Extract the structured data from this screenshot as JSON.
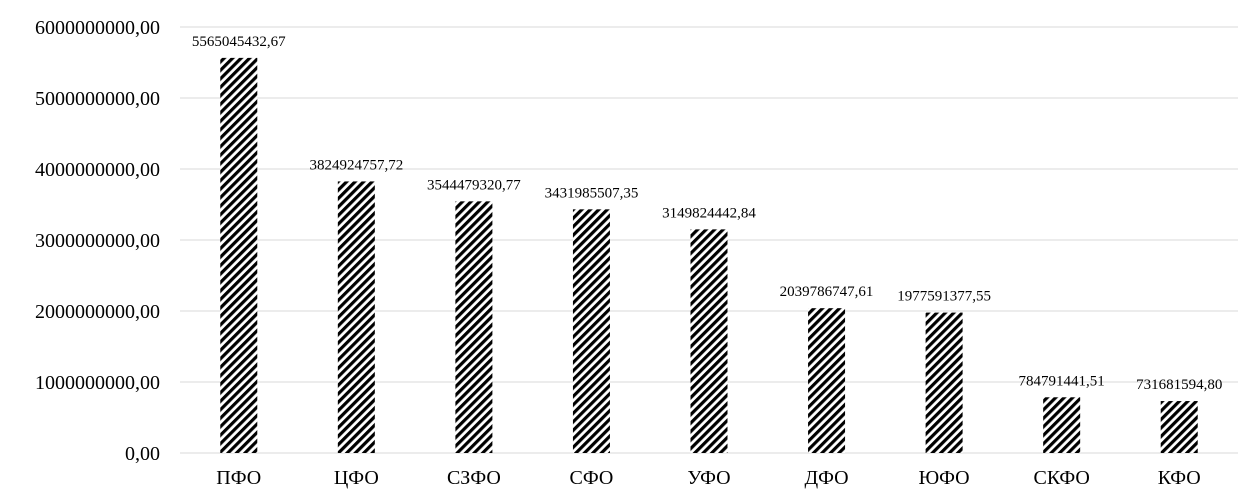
{
  "chart_data": {
    "type": "bar",
    "title": "",
    "xlabel": "",
    "ylabel": "",
    "categories": [
      "ПФО",
      "ЦФО",
      "СЗФО",
      "СФО",
      "УФО",
      "ДФО",
      "ЮФО",
      "СКФО",
      "КФО"
    ],
    "values": [
      5565045432.67,
      3824924757.72,
      3544479320.77,
      3431985507.35,
      3149824442.84,
      2039786747.61,
      1977591377.55,
      784791441.51,
      731681594.8
    ],
    "data_labels": [
      "5565045432,67",
      "3824924757,72",
      "3544479320,77",
      "3431985507,35",
      "3149824442,84",
      "2039786747,61",
      "1977591377,55",
      "784791441,51",
      "731681594,80"
    ],
    "ylim": [
      0,
      6000000000
    ],
    "yticks": [
      0,
      1000000000,
      2000000000,
      3000000000,
      4000000000,
      5000000000,
      6000000000
    ],
    "ytick_labels": [
      "0,00",
      "1000000000,00",
      "2000000000,00",
      "3000000000,00",
      "4000000000,00",
      "5000000000,00",
      "6000000000,00"
    ],
    "grid": true,
    "legend": "none",
    "bar_fill": "hatched diagonal black/white",
    "colors": {
      "bar_stroke": "#000000",
      "grid": "#d9d9d9",
      "text": "#000000"
    }
  }
}
